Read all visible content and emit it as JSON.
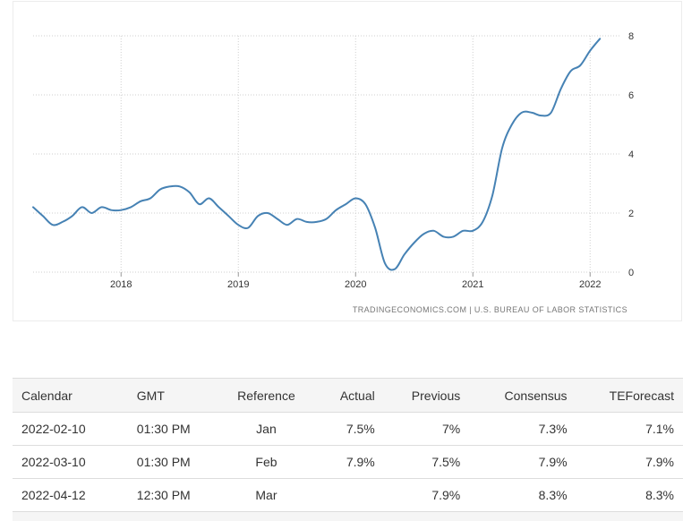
{
  "chart_data": {
    "type": "line",
    "title": "",
    "xlabel": "",
    "ylabel": "",
    "x_tick_labels": [
      "2018",
      "2019",
      "2020",
      "2021",
      "2022"
    ],
    "y_tick_labels": [
      "0",
      "2",
      "4",
      "6",
      "8"
    ],
    "ylim": [
      0,
      8
    ],
    "xlim": [
      "2017-04",
      "2022-04"
    ],
    "grid": true,
    "y_axis_side": "right",
    "line_color": "#4682b4",
    "series": [
      {
        "x": [
          "2017-04",
          "2017-05",
          "2017-06",
          "2017-07",
          "2017-08",
          "2017-09",
          "2017-10",
          "2017-11",
          "2017-12",
          "2018-01",
          "2018-02",
          "2018-03",
          "2018-04",
          "2018-05",
          "2018-06",
          "2018-07",
          "2018-08",
          "2018-09",
          "2018-10",
          "2018-11",
          "2018-12",
          "2019-01",
          "2019-02",
          "2019-03",
          "2019-04",
          "2019-05",
          "2019-06",
          "2019-07",
          "2019-08",
          "2019-09",
          "2019-10",
          "2019-11",
          "2019-12",
          "2020-01",
          "2020-02",
          "2020-03",
          "2020-04",
          "2020-05",
          "2020-06",
          "2020-07",
          "2020-08",
          "2020-09",
          "2020-10",
          "2020-11",
          "2020-12",
          "2021-01",
          "2021-02",
          "2021-03",
          "2021-04",
          "2021-05",
          "2021-06",
          "2021-07",
          "2021-08",
          "2021-09",
          "2021-10",
          "2021-11",
          "2021-12",
          "2022-01"
        ],
        "values": [
          2.2,
          1.9,
          1.6,
          1.7,
          1.9,
          2.2,
          2.0,
          2.2,
          2.1,
          2.1,
          2.2,
          2.4,
          2.5,
          2.8,
          2.9,
          2.9,
          2.7,
          2.3,
          2.5,
          2.2,
          1.9,
          1.6,
          1.5,
          1.9,
          2.0,
          1.8,
          1.6,
          1.8,
          1.7,
          1.7,
          1.8,
          2.1,
          2.3,
          2.5,
          2.3,
          1.5,
          0.3,
          0.1,
          0.6,
          1.0,
          1.3,
          1.4,
          1.2,
          1.2,
          1.4,
          1.4,
          1.7,
          2.6,
          4.2,
          5.0,
          5.4,
          5.4,
          5.3,
          5.4,
          6.2,
          6.8,
          7.0,
          7.5
        ]
      }
    ],
    "last_point": {
      "x": "2022-02",
      "y": 7.9
    }
  },
  "source_text": "TRADINGECONOMICS.COM  |  U.S. BUREAU OF LABOR STATISTICS",
  "calendar": {
    "headers": [
      "Calendar",
      "GMT",
      "Reference",
      "Actual",
      "Previous",
      "Consensus",
      "TEForecast"
    ],
    "rows": [
      [
        "2022-02-10",
        "01:30 PM",
        "Jan",
        "7.5%",
        "7%",
        "7.3%",
        "7.1%"
      ],
      [
        "2022-03-10",
        "01:30 PM",
        "Feb",
        "7.9%",
        "7.5%",
        "7.9%",
        "7.9%"
      ],
      [
        "2022-04-12",
        "12:30 PM",
        "Mar",
        "",
        "7.9%",
        "8.3%",
        "8.3%"
      ]
    ]
  }
}
